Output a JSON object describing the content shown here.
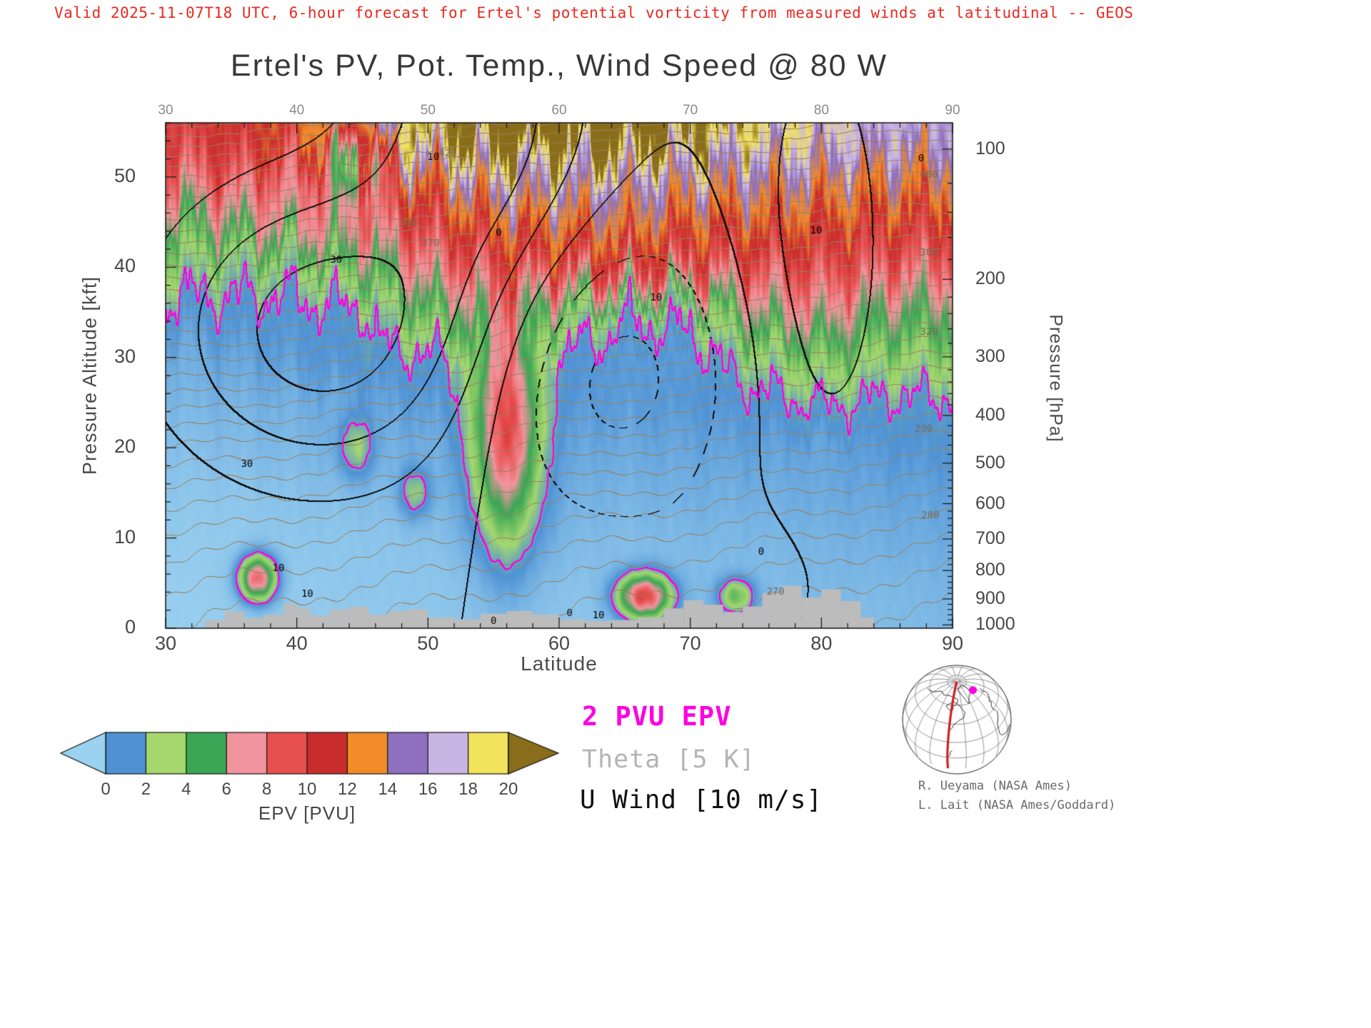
{
  "header": {
    "text": "Valid 2025-11-07T18 UTC, 6-hour forecast for Ertel's potential vorticity from measured winds at latitudinal -- GEOS",
    "color": "#e8291f"
  },
  "chart_data": {
    "type": "heatmap",
    "title": "Ertel's PV, Pot. Temp., Wind Speed @ 80 W",
    "xlabel": "Latitude",
    "ylabel_left": "Pressure Altitude [kft]",
    "ylabel_right": "Pressure [hPa]",
    "x_range": [
      30,
      90
    ],
    "x_major_ticks": [
      30,
      40,
      50,
      60,
      70,
      80,
      90
    ],
    "x_minor_step": 2,
    "y_left_range_kft": [
      0,
      56
    ],
    "y_left_major_ticks": [
      0,
      10,
      20,
      30,
      40,
      50
    ],
    "y_left_minor_step": 2,
    "y_right_ticks_hpa": [
      100,
      200,
      300,
      400,
      500,
      600,
      700,
      800,
      900,
      1000
    ],
    "colorbar": {
      "label": "EPV [PVU]",
      "ticks": [
        0,
        2,
        4,
        6,
        8,
        10,
        12,
        14,
        16,
        18,
        20
      ],
      "segment_colors": [
        "#4f92d4",
        "#a5d76e",
        "#3aa655",
        "#f2949e",
        "#e85050",
        "#c92c2c",
        "#f28c28",
        "#8e6fc0",
        "#c9b5e4",
        "#f2e35c"
      ],
      "under_color": "#9ad2f0",
      "over_color": "#8a6d1a",
      "color_stops": [
        [
          0,
          "#a8dcf5"
        ],
        [
          1.6,
          "#4f92d4"
        ],
        [
          3,
          "#a5d76e"
        ],
        [
          5,
          "#3aa655"
        ],
        [
          7,
          "#f2949e"
        ],
        [
          9,
          "#e85050"
        ],
        [
          11,
          "#c92c2c"
        ],
        [
          13,
          "#f28c28"
        ],
        [
          15,
          "#8e6fc0"
        ],
        [
          17,
          "#c9b5e4"
        ],
        [
          19,
          "#f2e35c"
        ],
        [
          20.6,
          "#8a6d1a"
        ]
      ]
    },
    "legend": [
      {
        "label": "2 PVU EPV",
        "color": "#ff00e0"
      },
      {
        "label": "Theta [5 K]",
        "color": "#b4b4b4"
      },
      {
        "label": "U Wind [10 m/s]",
        "color": "#111111"
      }
    ],
    "epv_field": {
      "units": "PVU",
      "lats": [
        30,
        35,
        40,
        45,
        50,
        55,
        60,
        65,
        70,
        75,
        80,
        85,
        90
      ],
      "alts_kft": [
        0,
        5,
        10,
        15,
        20,
        25,
        30,
        35,
        40,
        45,
        50,
        55
      ],
      "values_pvu": [
        [
          0.3,
          0.3,
          0.4,
          0.4,
          0.5,
          0.5,
          0.5,
          0.5,
          0.6,
          0.6,
          0.7,
          0.7,
          0.8
        ],
        [
          0.3,
          0.4,
          0.4,
          0.5,
          0.5,
          0.6,
          0.6,
          0.6,
          0.7,
          0.7,
          0.8,
          0.8,
          0.9
        ],
        [
          0.4,
          0.4,
          0.5,
          0.5,
          0.6,
          0.8,
          0.8,
          0.7,
          0.8,
          0.8,
          0.9,
          1.0,
          1.1
        ],
        [
          0.5,
          0.5,
          0.6,
          0.7,
          0.8,
          1.0,
          1.0,
          0.9,
          1.0,
          1.0,
          1.1,
          1.2,
          1.3
        ],
        [
          0.6,
          0.7,
          0.8,
          0.9,
          1.0,
          1.3,
          1.2,
          1.1,
          1.2,
          1.3,
          1.2,
          1.5,
          1.6
        ],
        [
          0.8,
          0.9,
          1.0,
          1.2,
          1.4,
          1.6,
          1.5,
          1.4,
          1.5,
          1.6,
          2.1,
          1.8,
          1.8
        ],
        [
          1.0,
          1.2,
          1.4,
          1.7,
          1.8,
          2.5,
          1.6,
          1.4,
          1.4,
          2.8,
          4.0,
          3.2,
          3.4
        ],
        [
          1.5,
          1.7,
          1.6,
          1.8,
          4.5,
          5.5,
          4.0,
          2.2,
          2.4,
          6.0,
          7.0,
          5.5,
          5.2
        ],
        [
          3.0,
          2.6,
          2.8,
          4.5,
          7.5,
          9.0,
          9.5,
          10.0,
          9.0,
          9.0,
          9.5,
          8.5,
          8.0
        ],
        [
          4.5,
          6.0,
          7.0,
          8.0,
          10.0,
          12.0,
          13.0,
          13.0,
          12.0,
          12.0,
          11.5,
          11.0,
          10.5
        ],
        [
          8.0,
          9.0,
          8.0,
          10.0,
          13.0,
          16.0,
          16.0,
          16.0,
          15.0,
          14.5,
          14.0,
          13.5,
          13.0
        ],
        [
          10.0,
          11.0,
          12.0,
          18.0,
          20.0,
          23.0,
          23.0,
          22.0,
          21.0,
          19.0,
          18.0,
          17.0,
          16.0
        ]
      ],
      "bumps": [
        {
          "lat": 56,
          "alt": 22,
          "amp": 8,
          "slat": 1.6,
          "salt": 8
        },
        {
          "lat": 37,
          "alt": 5.5,
          "amp": 8,
          "slat": 0.9,
          "salt": 1.6
        },
        {
          "lat": 44.5,
          "alt": 20,
          "amp": 2.0,
          "slat": 0.9,
          "salt": 2.2
        },
        {
          "lat": 49,
          "alt": 15,
          "amp": 2.0,
          "slat": 0.8,
          "salt": 1.8
        },
        {
          "lat": 66.5,
          "alt": 3.5,
          "amp": 9,
          "slat": 1.3,
          "salt": 1.6
        },
        {
          "lat": 73.5,
          "alt": 3.5,
          "amp": 3.5,
          "slat": 0.9,
          "salt": 1.3
        },
        {
          "lat": 44.5,
          "alt": 53,
          "amp": -8,
          "slat": 1.4,
          "salt": 3.5
        }
      ]
    },
    "tropopause_contour_pvu": 2,
    "theta_contours": {
      "surface_K": 300,
      "dlat": -0.4,
      "dz": 1.15,
      "dz2": 0.031,
      "interval_K": 5,
      "labels": [
        {
          "text": "420",
          "lat": 51.5,
          "alt": 52.6
        },
        {
          "text": "400",
          "lat": 88.2,
          "alt": 50.2
        },
        {
          "text": "360",
          "lat": 48.5,
          "alt": 44.8
        },
        {
          "text": "370",
          "lat": 50.2,
          "alt": 42.6
        },
        {
          "text": "360",
          "lat": 88.2,
          "alt": 41.6
        },
        {
          "text": "320",
          "lat": 88.2,
          "alt": 32.8
        },
        {
          "text": "290",
          "lat": 87.8,
          "alt": 22.0
        },
        {
          "text": "280",
          "lat": 88.3,
          "alt": 12.5
        },
        {
          "text": "270",
          "lat": 76.5,
          "alt": 4.0
        }
      ]
    },
    "wind_contours": {
      "interval_ms": 10,
      "jets": [
        {
          "lat": 42,
          "alt": 33,
          "peak_ms": 35,
          "slat": 9,
          "salt": 12
        },
        {
          "lat": 54,
          "alt": 58,
          "peak_ms": 26,
          "slat": 6,
          "salt": 14
        },
        {
          "lat": 64,
          "alt": 28,
          "peak_ms": -24,
          "slat": 7,
          "salt": 12
        },
        {
          "lat": 80,
          "alt": 42,
          "peak_ms": 15,
          "slat": 4.5,
          "salt": 22
        },
        {
          "lat": 74,
          "alt": 6,
          "peak_ms": -7,
          "slat": 4,
          "salt": 5
        }
      ],
      "labels": [
        {
          "text": "30",
          "lat": 36.2,
          "alt": 18.2
        },
        {
          "text": "30",
          "lat": 43.0,
          "alt": 40.8
        },
        {
          "text": "10",
          "lat": 38.6,
          "alt": 6.6
        },
        {
          "text": "10",
          "lat": 40.8,
          "alt": 3.8
        },
        {
          "text": "10",
          "lat": 50.4,
          "alt": 52.2
        },
        {
          "text": "0",
          "lat": 55.4,
          "alt": 43.8
        },
        {
          "text": "10",
          "lat": 67.4,
          "alt": 36.6
        },
        {
          "text": "0",
          "lat": 60.8,
          "alt": 1.6
        },
        {
          "text": "10",
          "lat": 63.0,
          "alt": 1.4
        },
        {
          "text": "0",
          "lat": 75.4,
          "alt": 8.4
        },
        {
          "text": "10",
          "lat": 79.6,
          "alt": 44.0
        },
        {
          "text": "0",
          "lat": 87.6,
          "alt": 52.0
        },
        {
          "text": "0",
          "lat": 55.0,
          "alt": 0.8
        }
      ]
    },
    "terrain_kft": [
      [
        33,
        34.5,
        0.9
      ],
      [
        34.5,
        36,
        1.9
      ],
      [
        36,
        37.5,
        1.1
      ],
      [
        37.5,
        39,
        1.5
      ],
      [
        39,
        40,
        2.7
      ],
      [
        40,
        41,
        2.2
      ],
      [
        41,
        42.5,
        1.4
      ],
      [
        42.5,
        44,
        2.1
      ],
      [
        44,
        45.5,
        2.4
      ],
      [
        45.5,
        47,
        1.5
      ],
      [
        47,
        48.5,
        1.9
      ],
      [
        48.5,
        50,
        2.1
      ],
      [
        50,
        52,
        1.2
      ],
      [
        52,
        54,
        1.0
      ],
      [
        54,
        56,
        1.6
      ],
      [
        56,
        58,
        1.9
      ],
      [
        58,
        60,
        1.5
      ],
      [
        60,
        62,
        1.0
      ],
      [
        62,
        64,
        0.8
      ],
      [
        64,
        66,
        0.9
      ],
      [
        66,
        68,
        1.2
      ],
      [
        68,
        69.5,
        2.2
      ],
      [
        69.5,
        71,
        3.1
      ],
      [
        71,
        72.5,
        2.6
      ],
      [
        72.5,
        74,
        1.8
      ],
      [
        74,
        75.5,
        2.4
      ],
      [
        75.5,
        77,
        3.9
      ],
      [
        77,
        78.5,
        4.7
      ],
      [
        78.5,
        80,
        3.4
      ],
      [
        80,
        81.5,
        4.3
      ],
      [
        81.5,
        83,
        3.0
      ],
      [
        83,
        84,
        1.2
      ]
    ]
  },
  "annotations": {
    "credit_line1": "R. Ueyama (NASA Ames)",
    "credit_line2": "L. Lait (NASA Ames/Goddard)"
  },
  "inset_map": {
    "name": "orthographic-globe-inset",
    "meridian_color": "#cc2020",
    "marker_color": "#ff00e0"
  }
}
